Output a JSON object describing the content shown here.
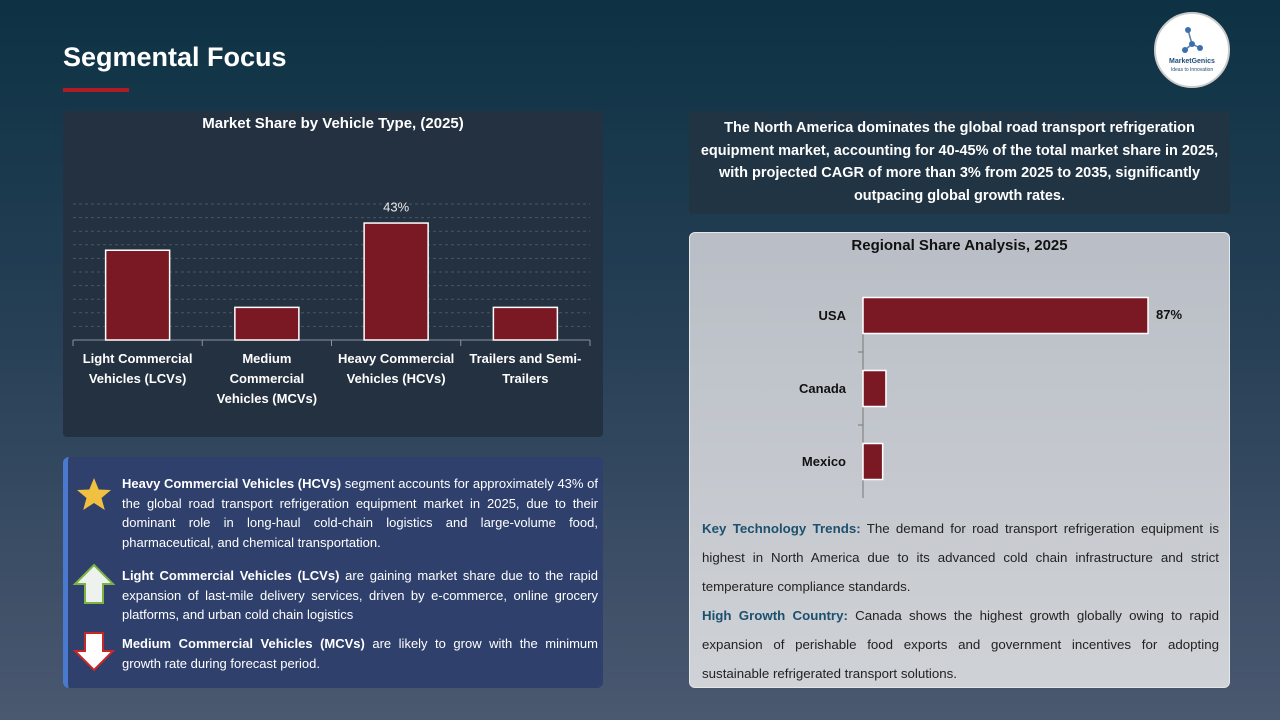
{
  "title": "Segmental Focus",
  "logo": {
    "name": "MarketGenics",
    "tagline": "Ideas to Innovation"
  },
  "chart_data": [
    {
      "type": "bar",
      "orientation": "vertical",
      "title": "Market Share by Vehicle Type, (2025)",
      "categories": [
        "Light Commercial Vehicles (LCVs)",
        "Medium Commercial Vehicles (MCVs)",
        "Heavy Commercial Vehicles (HCVs)",
        "Trailers and Semi-Trailers"
      ],
      "values": [
        33,
        12,
        43,
        12
      ],
      "value_labels": [
        null,
        null,
        "43%",
        null
      ],
      "color": "#7a1923",
      "ylim": [
        0,
        50
      ],
      "yticks": [
        0,
        5,
        10,
        15,
        20,
        25,
        30,
        35,
        40,
        45,
        50
      ],
      "grid": true
    },
    {
      "type": "bar",
      "orientation": "horizontal",
      "title": "Regional Share Analysis, 2025",
      "categories": [
        "USA",
        "Canada",
        "Mexico"
      ],
      "values": [
        87,
        7,
        6
      ],
      "value_labels": [
        "87%",
        null,
        null
      ],
      "color": "#7a1923",
      "xlim": [
        0,
        100
      ],
      "grid": false
    }
  ],
  "summary": "The North America dominates the global road transport refrigeration equipment market, accounting for 40-45% of the total market share in 2025, with projected CAGR of more than 3% from 2025 to 2035, significantly outpacing global growth rates.",
  "highlights": [
    {
      "bold": "Heavy Commercial Vehicles (HCVs)",
      "text": "segment accounts for approximately 43% of the global road transport refrigeration equipment market in 2025, due to their dominant role in long-haul cold-chain logistics and large-volume food, pharmaceutical, and chemical transportation."
    },
    {
      "bold": "Light Commercial Vehicles (LCVs)",
      "text": "are gaining market share due to the rapid expansion of last-mile delivery services, driven by e-commerce, online grocery platforms, and urban cold chain logistics"
    },
    {
      "bold": "Medium Commercial Vehicles (MCVs)",
      "text": "are likely to grow with the minimum growth rate during forecast period."
    }
  ],
  "trends": [
    {
      "label": "Key Technology Trends:",
      "text": "The demand for road transport refrigeration equipment is highest in North America due to its advanced cold chain infrastructure and strict temperature compliance standards."
    },
    {
      "label": "High Growth Country:",
      "text": "Canada shows the highest growth globally owing to rapid expansion of perishable food exports and government incentives for adopting sustainable refrigerated transport solutions."
    }
  ]
}
